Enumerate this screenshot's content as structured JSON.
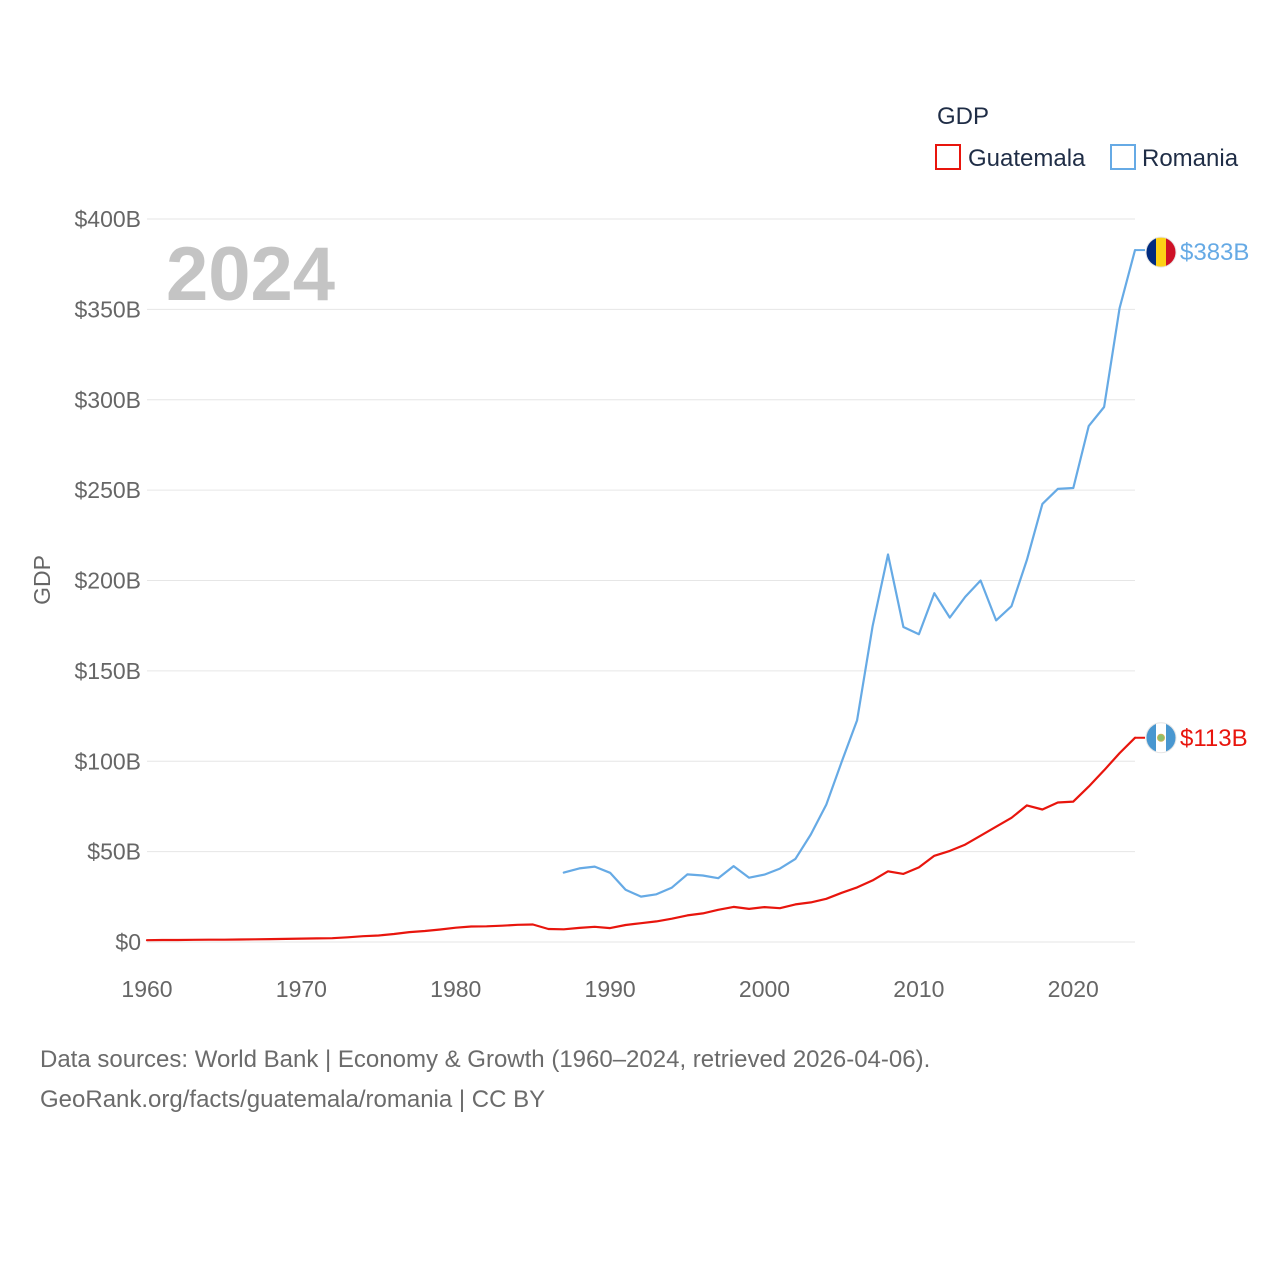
{
  "chart_data": {
    "type": "line",
    "title": "",
    "ylabel": "GDP",
    "xlabel": "",
    "current_year_label": "2024",
    "legend_title": "GDP",
    "xlim": [
      1960,
      2024
    ],
    "ylim": [
      0,
      400
    ],
    "x_ticks": [
      1960,
      1970,
      1980,
      1990,
      2000,
      2010,
      2020
    ],
    "y_ticks": [
      0,
      50,
      100,
      150,
      200,
      250,
      300,
      350,
      400
    ],
    "y_tick_labels": [
      "$0",
      "$50B",
      "$100B",
      "$150B",
      "$200B",
      "$250B",
      "$300B",
      "$350B",
      "$400B"
    ],
    "grid": true,
    "legend_position": "top-right",
    "series": [
      {
        "name": "Guatemala",
        "color": "#e8150d",
        "end_label": "$113B",
        "flag_icon": "guatemala-flag-icon",
        "x": [
          1960,
          1961,
          1962,
          1963,
          1964,
          1965,
          1966,
          1967,
          1968,
          1969,
          1970,
          1971,
          1972,
          1973,
          1974,
          1975,
          1976,
          1977,
          1978,
          1979,
          1980,
          1981,
          1982,
          1983,
          1984,
          1985,
          1986,
          1987,
          1988,
          1989,
          1990,
          1991,
          1992,
          1993,
          1994,
          1995,
          1996,
          1997,
          1998,
          1999,
          2000,
          2001,
          2002,
          2003,
          2004,
          2005,
          2006,
          2007,
          2008,
          2009,
          2010,
          2011,
          2012,
          2013,
          2014,
          2015,
          2016,
          2017,
          2018,
          2019,
          2020,
          2021,
          2022,
          2023,
          2024
        ],
        "values": [
          1.0,
          1.1,
          1.1,
          1.2,
          1.3,
          1.3,
          1.4,
          1.5,
          1.6,
          1.7,
          1.9,
          2.0,
          2.1,
          2.6,
          3.2,
          3.6,
          4.4,
          5.5,
          6.1,
          6.9,
          7.9,
          8.6,
          8.7,
          9.0,
          9.5,
          9.7,
          7.2,
          7.0,
          7.8,
          8.4,
          7.7,
          9.4,
          10.4,
          11.4,
          12.9,
          14.7,
          15.8,
          17.8,
          19.4,
          18.3,
          19.3,
          18.7,
          20.8,
          21.9,
          23.9,
          27.2,
          30.2,
          34.1,
          39.1,
          37.7,
          41.3,
          47.7,
          50.4,
          53.9,
          58.8,
          63.8,
          68.7,
          75.6,
          73.3,
          77.2,
          77.7,
          86.0,
          95.0,
          104.5,
          113.0
        ]
      },
      {
        "name": "Romania",
        "color": "#66aae5",
        "end_label": "$383B",
        "flag_icon": "romania-flag-icon",
        "x": [
          1987,
          1988,
          1989,
          1990,
          1991,
          1992,
          1993,
          1994,
          1995,
          1996,
          1997,
          1998,
          1999,
          2000,
          2001,
          2002,
          2003,
          2004,
          2005,
          2006,
          2007,
          2008,
          2009,
          2010,
          2011,
          2012,
          2013,
          2014,
          2015,
          2016,
          2017,
          2018,
          2019,
          2020,
          2021,
          2022,
          2023,
          2024
        ],
        "values": [
          38.4,
          40.7,
          41.7,
          38.3,
          28.9,
          25.1,
          26.4,
          30.1,
          37.4,
          36.8,
          35.3,
          42.0,
          35.6,
          37.3,
          40.6,
          46.0,
          59.5,
          76.0,
          99.7,
          122.7,
          174.7,
          214.4,
          174.3,
          170.3,
          193.0,
          179.5,
          190.9,
          200.0,
          177.9,
          185.8,
          211.4,
          242.4,
          250.7,
          251.2,
          285.4,
          296.0,
          350.7,
          382.8
        ]
      }
    ]
  },
  "footer": {
    "line1": "Data sources: World Bank | Economy & Growth (1960–2024, retrieved 2026-04-06).",
    "line2": "GeoRank.org/facts/guatemala/romania | CC BY"
  }
}
